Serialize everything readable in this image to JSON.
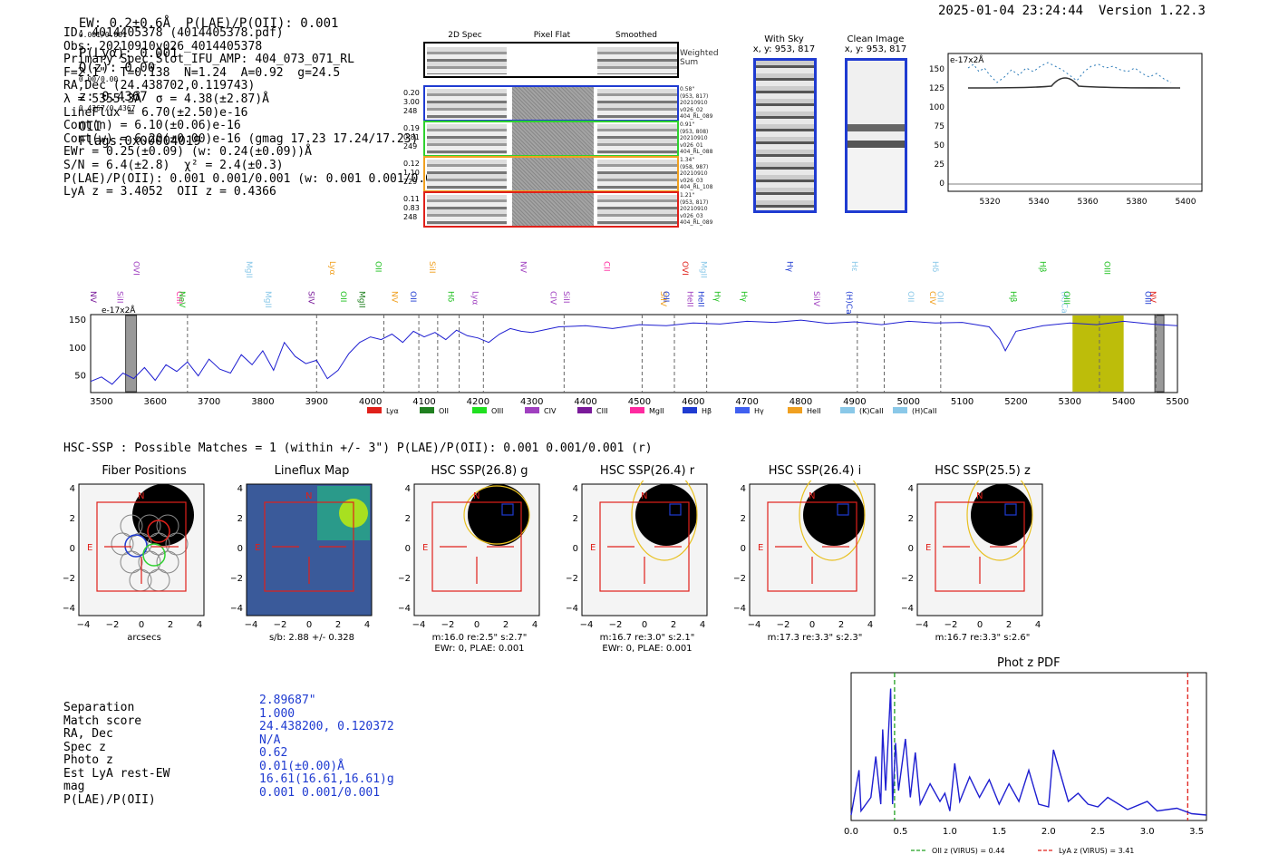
{
  "header": {
    "summary": "EW: 0.2±0.6Å  P(LAE)/P(OII): 0.001",
    "plae_range": "0.001/0.001",
    "plya": "P(Lyα): 0.001",
    "qz": "Q(z): 0.00",
    "qz_range": "0.00/0.00",
    "z": "z: 0.4367",
    "z_range": "0.4367/0.4367",
    "z_line": "OII",
    "flags": "Flags:0x00004019",
    "timestamp": "2025-01-04 23:24:44",
    "version": "Version 1.22.3"
  },
  "info": {
    "l1": "ID: 4014405378 (4014405378.pdf)",
    "l2": "Obs: 20210910v026_4014405378",
    "l3": "Primary Spec_Slot_IFU_AMP: 404_073_071_RL",
    "l4": "F=2.1\"  T=0.138  N=1.24  A=0.92  g=24.5",
    "l5": "RA,Dec (24.438702,0.119743)",
    "l6": "λ = 5355.3Å  σ = 4.38(±2.87)Å",
    "l7": "LineFlux = 6.70(±2.50)e-16",
    "l8": "Cont(n) = 6.10(±0.06)e-16",
    "l9": "Cont(w) = 6.20(±0.00)e-16 (gmag 17.23 17.24/17.23)",
    "l10": "EWr = 0.25(±0.09) (w: 0.24(±0.09))Å",
    "l11": "S/N = 6.4(±2.8)  χ² = 2.4(±0.3)",
    "l12": "P(LAE)/P(OII): 0.001 0.001/0.001 (w: 0.001 0.001/0.001)",
    "l13": "LyA z = 3.4052  OII z = 0.4366"
  },
  "fibers": {
    "col_2d": "2D Spec",
    "col_flat": "Pixel Flat",
    "col_smooth": "Smoothed",
    "weighted": "Weighted Sum",
    "rows": [
      {
        "a": "0.20",
        "b": "3.00",
        "c": "248",
        "r1": "0.58\"",
        "r2": "(953, 817)",
        "r3": "20210910",
        "r4": "v026_02",
        "r5": "404_RL_089",
        "color": "#1f3bd1"
      },
      {
        "a": "0.19",
        "b": "0.81",
        "c": "249",
        "r1": "0.91\"",
        "r2": "(953, 808)",
        "r3": "20210910",
        "r4": "v026_01",
        "r5": "404_RL_088",
        "color": "#2fd12f"
      },
      {
        "a": "0.12",
        "b": "1.10",
        "c": "229",
        "r1": "1.34\"",
        "r2": "(958, 987)",
        "r3": "20210910",
        "r4": "v026_03",
        "r5": "404_RL_108",
        "color": "#f0a020"
      },
      {
        "a": "0.11",
        "b": "0.83",
        "c": "248",
        "r1": "1.21\"",
        "r2": "(953, 817)",
        "r3": "20210910",
        "r4": "v026_03",
        "r5": "404_RL_089",
        "color": "#e0201a"
      }
    ]
  },
  "cutouts": {
    "sky_title": "With Sky",
    "sky_xy": "x, y: 953, 817",
    "clean_title": "Clean Image",
    "clean_xy": "x, y: 953, 817"
  },
  "zoom_chart": {
    "unit": "e-17x2Å",
    "x_ticks": [
      "5320",
      "5340",
      "5360",
      "5380",
      "5400"
    ],
    "y_ticks": [
      "150",
      "125",
      "100",
      "75",
      "50",
      "25",
      "0"
    ]
  },
  "chart_data": [
    {
      "type": "line",
      "title": "Full spectrum",
      "ylabel": "e-17x2Å",
      "xlim": [
        3480,
        5500
      ],
      "ylim": [
        20,
        160
      ],
      "x_ticks": [
        3500,
        3600,
        3700,
        3800,
        3900,
        4000,
        4100,
        4200,
        4300,
        4400,
        4500,
        4600,
        4700,
        4800,
        4900,
        5000,
        5100,
        5200,
        5300,
        5400,
        5500
      ],
      "y_ticks": [
        50,
        100,
        150
      ],
      "x": [
        3480,
        3500,
        3520,
        3540,
        3560,
        3580,
        3600,
        3620,
        3640,
        3660,
        3680,
        3700,
        3720,
        3740,
        3760,
        3780,
        3800,
        3820,
        3840,
        3860,
        3880,
        3900,
        3920,
        3940,
        3960,
        3980,
        4000,
        4020,
        4040,
        4060,
        4080,
        4100,
        4120,
        4140,
        4160,
        4180,
        4200,
        4220,
        4240,
        4260,
        4280,
        4300,
        4350,
        4400,
        4450,
        4500,
        4550,
        4600,
        4650,
        4700,
        4750,
        4800,
        4850,
        4900,
        4950,
        5000,
        5050,
        5100,
        5150,
        5170,
        5180,
        5200,
        5250,
        5300,
        5350,
        5400,
        5450,
        5500
      ],
      "y": [
        40,
        48,
        35,
        55,
        45,
        65,
        42,
        70,
        58,
        75,
        50,
        80,
        62,
        55,
        88,
        70,
        95,
        60,
        110,
        85,
        72,
        78,
        45,
        60,
        90,
        110,
        120,
        115,
        125,
        110,
        130,
        120,
        128,
        115,
        132,
        122,
        118,
        110,
        125,
        135,
        130,
        128,
        138,
        140,
        135,
        142,
        140,
        145,
        143,
        148,
        146,
        150,
        144,
        147,
        142,
        148,
        145,
        146,
        138,
        115,
        95,
        130,
        140,
        145,
        142,
        148,
        143,
        140
      ],
      "line_marks": [
        {
          "name": "NV",
          "x": 3500,
          "color": "#7a1a9a"
        },
        {
          "name": "SiII",
          "x": 3550,
          "color": "#a040c0"
        },
        {
          "name": "OVI",
          "x": 3580,
          "color": "#a040c0"
        },
        {
          "name": "CIII",
          "x": 3660,
          "color": "#ff2aa0"
        },
        {
          "name": "NeV",
          "x": 3665,
          "color": "#20c020"
        },
        {
          "name": "MgII",
          "x": 3790,
          "color": "#8ac8e8"
        },
        {
          "name": "MgII",
          "x": 3825,
          "color": "#8ac8e8"
        },
        {
          "name": "SIV",
          "x": 3905,
          "color": "#7a1a9a"
        },
        {
          "name": "Lyα",
          "x": 3945,
          "color": "#f0a020"
        },
        {
          "name": "OII",
          "x": 3965,
          "color": "#20c020"
        },
        {
          "name": "MgII",
          "x": 4000,
          "color": "#208020"
        },
        {
          "name": "OII",
          "x": 4030,
          "color": "#20c020"
        },
        {
          "name": "NV",
          "x": 4060,
          "color": "#f0a020"
        },
        {
          "name": "OII",
          "x": 4095,
          "color": "#1f3bd1"
        },
        {
          "name": "SiII",
          "x": 4130,
          "color": "#f0a020"
        },
        {
          "name": "Hδ",
          "x": 4165,
          "color": "#20c020"
        },
        {
          "name": "Lyα",
          "x": 4210,
          "color": "#a040c0"
        },
        {
          "name": "NV",
          "x": 4300,
          "color": "#a040c0"
        },
        {
          "name": "CIV",
          "x": 4355,
          "color": "#a040c0"
        },
        {
          "name": "SiII",
          "x": 4380,
          "color": "#a040c0"
        },
        {
          "name": "CII",
          "x": 4455,
          "color": "#ff2aa0"
        },
        {
          "name": "SiIV",
          "x": 4560,
          "color": "#f0a020"
        },
        {
          "name": "OII",
          "x": 4565,
          "color": "#1f3bd1"
        },
        {
          "name": "OVI",
          "x": 4600,
          "color": "#e0201a"
        },
        {
          "name": "HeII",
          "x": 4610,
          "color": "#a040c0"
        },
        {
          "name": "HeII",
          "x": 4630,
          "color": "#1f3bd1"
        },
        {
          "name": "MgII",
          "x": 4635,
          "color": "#8ac8e8"
        },
        {
          "name": "Hγ",
          "x": 4660,
          "color": "#20c020"
        },
        {
          "name": "Hγ",
          "x": 4710,
          "color": "#20c020"
        },
        {
          "name": "Hγ",
          "x": 4795,
          "color": "#1f3bd1"
        },
        {
          "name": "SiIV",
          "x": 4845,
          "color": "#a040c0"
        },
        {
          "name": "(H)CaII",
          "x": 4905,
          "color": "#1f3bd1"
        },
        {
          "name": "Hε",
          "x": 4915,
          "color": "#8ac8e8"
        },
        {
          "name": "OII",
          "x": 5020,
          "color": "#8ac8e8"
        },
        {
          "name": "CIV",
          "x": 5060,
          "color": "#f0a020"
        },
        {
          "name": "Hδ",
          "x": 5065,
          "color": "#8ac8e8"
        },
        {
          "name": "OII",
          "x": 5075,
          "color": "#8ac8e8"
        },
        {
          "name": "Hβ",
          "x": 5210,
          "color": "#20c020"
        },
        {
          "name": "Hβ",
          "x": 5265,
          "color": "#20c020"
        },
        {
          "name": "(K)CaII",
          "x": 5305,
          "color": "#8ac8e8"
        },
        {
          "name": "OIII",
          "x": 5310,
          "color": "#20c020"
        },
        {
          "name": "OIII",
          "x": 5385,
          "color": "#20c020"
        },
        {
          "name": "OIII",
          "x": 5460,
          "color": "#1f3bd1"
        },
        {
          "name": "NV",
          "x": 5470,
          "color": "#e0201a"
        }
      ],
      "highlight": [
        5305,
        5400
      ],
      "legend": [
        {
          "name": "Lyα",
          "color": "#e0201a"
        },
        {
          "name": "OII",
          "color": "#208020"
        },
        {
          "name": "OIII",
          "color": "#20e020"
        },
        {
          "name": "CIV",
          "color": "#a040c0"
        },
        {
          "name": "CIII",
          "color": "#7a1a9a"
        },
        {
          "name": "MgII",
          "color": "#ff2aa0"
        },
        {
          "name": "Hβ",
          "color": "#1f3bd1"
        },
        {
          "name": "Hγ",
          "color": "#4060f0"
        },
        {
          "name": "HeII",
          "color": "#f0a020"
        },
        {
          "name": "(K)CaII",
          "color": "#8ac8e8"
        },
        {
          "name": "(H)CaII",
          "color": "#8ac8e8"
        }
      ]
    },
    {
      "type": "line",
      "title": "Phot z PDF",
      "xlim": [
        0,
        3.6
      ],
      "x_ticks": [
        0.0,
        0.5,
        1.0,
        1.5,
        2.0,
        2.5,
        3.0,
        3.5
      ],
      "x": [
        0,
        0.08,
        0.1,
        0.2,
        0.25,
        0.3,
        0.32,
        0.35,
        0.4,
        0.42,
        0.45,
        0.48,
        0.55,
        0.6,
        0.65,
        0.7,
        0.8,
        0.9,
        0.95,
        1.0,
        1.05,
        1.1,
        1.2,
        1.3,
        1.4,
        1.5,
        1.6,
        1.7,
        1.8,
        1.9,
        2.0,
        2.05,
        2.2,
        2.3,
        2.4,
        2.5,
        2.6,
        2.8,
        3.0,
        3.1,
        3.3,
        3.45,
        3.6
      ],
      "y": [
        0.02,
        0.35,
        0.05,
        0.15,
        0.45,
        0.1,
        0.65,
        0.2,
        0.95,
        0.1,
        0.55,
        0.2,
        0.58,
        0.15,
        0.48,
        0.1,
        0.25,
        0.12,
        0.18,
        0.05,
        0.4,
        0.12,
        0.3,
        0.15,
        0.28,
        0.1,
        0.25,
        0.12,
        0.35,
        0.1,
        0.08,
        0.5,
        0.12,
        0.18,
        0.1,
        0.08,
        0.15,
        0.06,
        0.12,
        0.05,
        0.07,
        0.03,
        0.02
      ],
      "vlines": [
        {
          "label": "OII z (VIRUS) = 0.44",
          "x": 0.44,
          "color": "#20a020"
        },
        {
          "label": "LyA z (VIRUS) = 3.41",
          "x": 3.41,
          "color": "#e0201a"
        }
      ]
    }
  ],
  "hsc": {
    "title": "HSC-SSP : Possible Matches = 1 (within +/- 3\")  P(LAE)/P(OII): 0.001 0.001/0.001 (r)",
    "panels": [
      {
        "title": "Fiber Positions",
        "foot1": "arcsecs",
        "foot2": ""
      },
      {
        "title": "Lineflux Map",
        "foot1": "s/b: 2.88 +/- 0.328",
        "foot2": ""
      },
      {
        "title": "HSC SSP(26.8) g",
        "foot1": "m:16.0  re:2.5\"  s:2.7\"",
        "foot2": "EWr: 0, PLAE: 0.001"
      },
      {
        "title": "HSC SSP(26.4) r",
        "foot1": "m:16.7  re:3.0\"  s:2.1\"",
        "foot2": "EWr: 0, PLAE: 0.001"
      },
      {
        "title": "HSC SSP(26.4) i",
        "foot1": "m:17.3  re:3.3\"  s:2.3\"",
        "foot2": ""
      },
      {
        "title": "HSC SSP(25.5) z",
        "foot1": "m:16.7  re:3.3\"  s:2.6\"",
        "foot2": ""
      }
    ],
    "axis_ticks": [
      "4",
      "2",
      "0",
      "−2",
      "−4"
    ],
    "x_ticks": [
      "−4",
      "−2",
      "0",
      "2",
      "4"
    ]
  },
  "match": {
    "rows": [
      {
        "k": "Separation",
        "v": "2.89687\""
      },
      {
        "k": "Match score",
        "v": "1.000"
      },
      {
        "k": "RA, Dec",
        "v": "24.438200, 0.120372"
      },
      {
        "k": "Spec z",
        "v": "N/A"
      },
      {
        "k": "Photo z",
        "v": "0.62"
      },
      {
        "k": "Est LyA rest-EW",
        "v": "0.01(±0.00)Å"
      },
      {
        "k": "mag",
        "v": "16.61(16.61,16.61)g"
      },
      {
        "k": "P(LAE)/P(OII)",
        "v": "0.001 0.001/0.001"
      }
    ]
  }
}
